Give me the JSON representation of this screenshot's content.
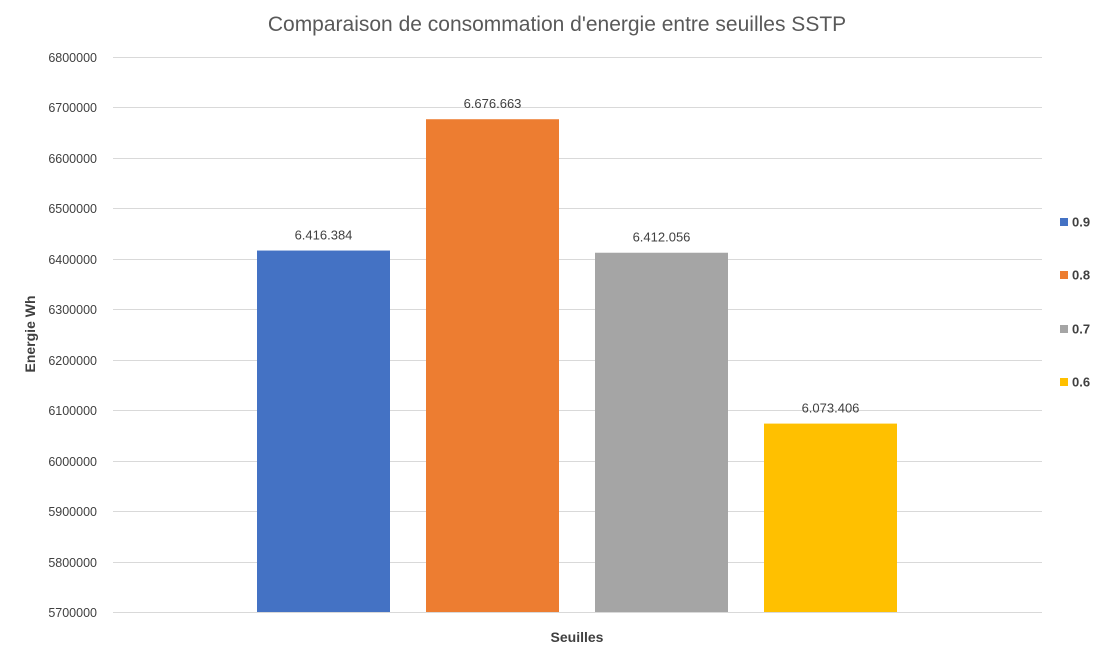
{
  "chart_data": {
    "type": "bar",
    "title": "Comparaison de consommation d'energie entre seuilles SSTP",
    "xlabel": "Seuilles",
    "ylabel": "Energie Wh",
    "ylim": [
      5700000,
      6800000
    ],
    "y_ticks": [
      5700000,
      5800000,
      5900000,
      6000000,
      6100000,
      6200000,
      6300000,
      6400000,
      6500000,
      6600000,
      6700000,
      6800000
    ],
    "grid": true,
    "legend_position": "right",
    "series": [
      {
        "name": "0.9",
        "value": 6416384,
        "label": "6.416.384",
        "color": "#4472c4"
      },
      {
        "name": "0.8",
        "value": 6676663,
        "label": "6.676.663",
        "color": "#ed7d31"
      },
      {
        "name": "0.7",
        "value": 6412056,
        "label": "6.412.056",
        "color": "#a5a5a5"
      },
      {
        "name": "0.6",
        "value": 6073406,
        "label": "6.073.406",
        "color": "#ffc000"
      }
    ]
  }
}
